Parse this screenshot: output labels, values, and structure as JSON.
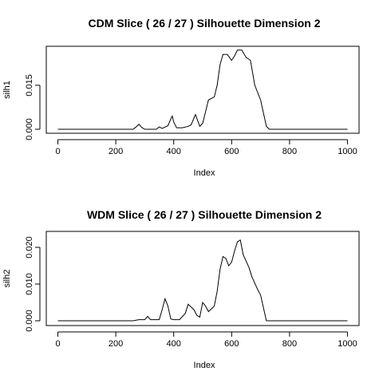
{
  "chart_data": [
    {
      "type": "line",
      "title": "CDM Slice ( 26 / 27 )  Silhouette Dimension 2",
      "x_label": "Index",
      "y_label": "silh1",
      "xlim": [
        -40,
        1040
      ],
      "xticks": [
        0,
        200,
        400,
        600,
        800,
        1000
      ],
      "ylim": [
        -0.00136,
        0.0283
      ],
      "yticks": [
        {
          "value": 0,
          "label": "0.000"
        },
        {
          "value": 0.015,
          "label": "0.015"
        }
      ],
      "series": [
        {
          "color": "#000000",
          "x": [
            0,
            260,
            270,
            280,
            290,
            300,
            340,
            350,
            360,
            380,
            390,
            395,
            400,
            410,
            430,
            450,
            460,
            475,
            490,
            500,
            510,
            520,
            540,
            550,
            560,
            570,
            585,
            600,
            610,
            620,
            635,
            650,
            665,
            680,
            700,
            720,
            730,
            1000
          ],
          "values": [
            0,
            0,
            0.0008,
            0.0017,
            0.0006,
            0,
            0,
            0.0008,
            0.0003,
            0.0012,
            0.0035,
            0.0045,
            0.0025,
            0.0005,
            0.0005,
            0.001,
            0.0015,
            0.005,
            0.001,
            0.002,
            0.006,
            0.01,
            0.011,
            0.015,
            0.022,
            0.0255,
            0.0255,
            0.0235,
            0.025,
            0.027,
            0.027,
            0.0245,
            0.0235,
            0.015,
            0.01,
            0.001,
            0,
            0
          ]
        }
      ]
    },
    {
      "type": "line",
      "title": "WDM Slice ( 26 / 27 )  Silhouette Dimension 2",
      "x_label": "Index",
      "y_label": "silh2",
      "xlim": [
        -40,
        1040
      ],
      "xticks": [
        0,
        200,
        400,
        600,
        800,
        1000
      ],
      "ylim": [
        -0.0013,
        0.02435
      ],
      "yticks": [
        {
          "value": 0,
          "label": "0.000"
        },
        {
          "value": 0.01,
          "label": "0.010"
        },
        {
          "value": 0.02,
          "label": "0.020"
        }
      ],
      "series": [
        {
          "color": "#000000",
          "x": [
            0,
            260,
            280,
            300,
            310,
            320,
            350,
            360,
            370,
            380,
            390,
            400,
            420,
            440,
            450,
            470,
            480,
            490,
            500,
            510,
            520,
            540,
            550,
            560,
            570,
            580,
            590,
            600,
            610,
            620,
            630,
            640,
            660,
            670,
            690,
            700,
            720,
            1000
          ],
          "values": [
            0,
            0,
            0.0003,
            0.0003,
            0.0012,
            0.0003,
            0.0003,
            0.003,
            0.006,
            0.004,
            0.0005,
            0.0003,
            0.0003,
            0.002,
            0.0045,
            0.003,
            0.0015,
            0.001,
            0.005,
            0.004,
            0.0025,
            0.004,
            0.008,
            0.014,
            0.0175,
            0.017,
            0.015,
            0.016,
            0.019,
            0.0215,
            0.022,
            0.018,
            0.0145,
            0.012,
            0.0085,
            0.007,
            0,
            0
          ]
        }
      ]
    }
  ]
}
